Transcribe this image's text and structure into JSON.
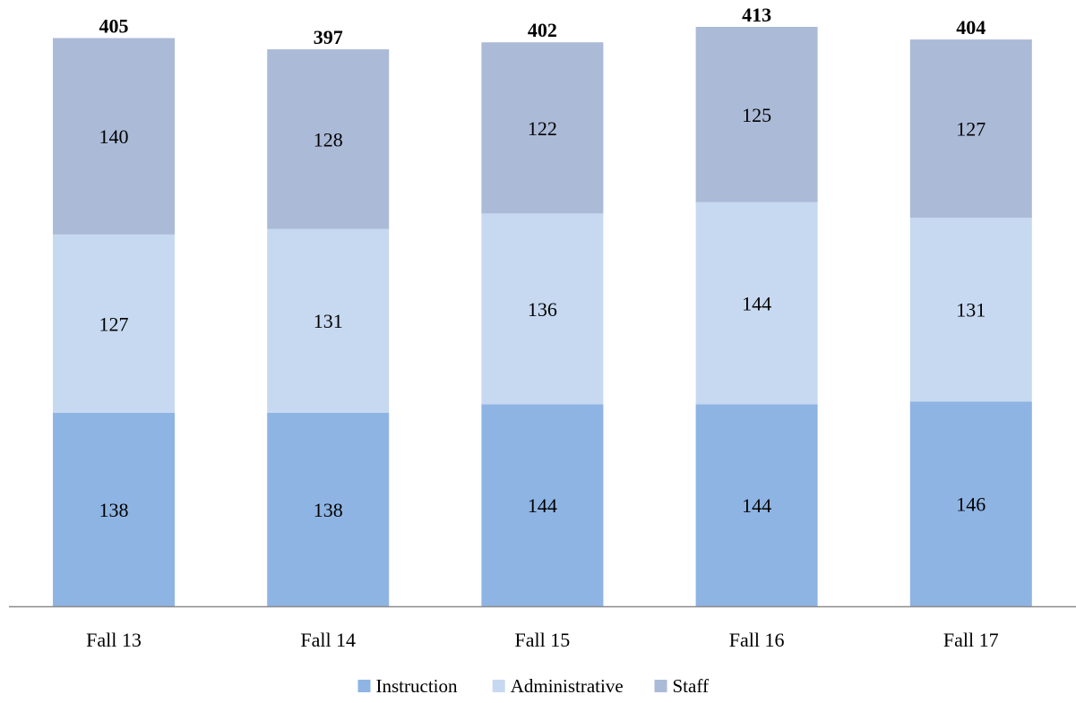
{
  "chart_data": {
    "type": "bar",
    "stacked": true,
    "categories": [
      "Fall 13",
      "Fall 14",
      "Fall 15",
      "Fall 16",
      "Fall 17"
    ],
    "series": [
      {
        "name": "Instruction",
        "color": "#8EB4E3",
        "values": [
          138,
          138,
          144,
          144,
          146
        ]
      },
      {
        "name": "Administrative",
        "color": "#C6D9F1",
        "values": [
          127,
          131,
          136,
          144,
          131
        ]
      },
      {
        "name": "Staff",
        "color": "#ABBAD7",
        "values": [
          140,
          128,
          122,
          125,
          127
        ]
      }
    ],
    "totals": [
      405,
      397,
      402,
      413,
      404
    ],
    "title": "",
    "xlabel": "",
    "ylabel": "",
    "ylim": [
      0,
      413
    ],
    "grid": false,
    "legend_position": "bottom",
    "axis_color": "#8c8c8c",
    "label_color": "#000000"
  }
}
